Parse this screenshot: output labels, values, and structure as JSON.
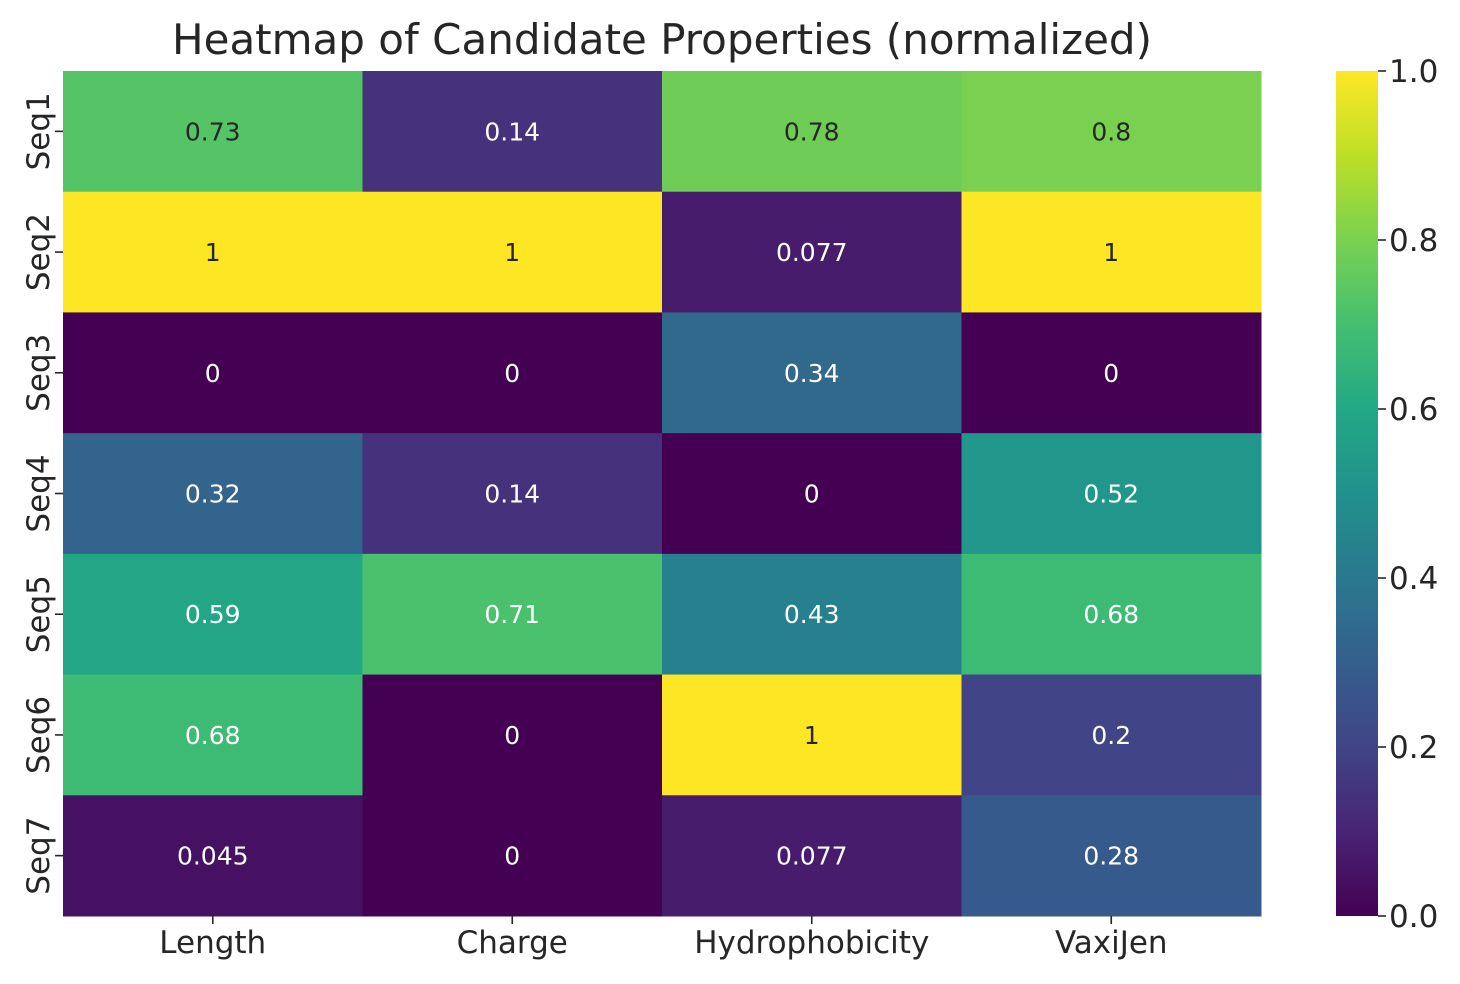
{
  "chart_data": {
    "type": "heatmap",
    "title": "Heatmap of Candidate Properties (normalized)",
    "xlabel": "",
    "ylabel": "",
    "columns": [
      "Length",
      "Charge",
      "Hydrophobicity",
      "VaxiJen"
    ],
    "rows": [
      "Seq1",
      "Seq2",
      "Seq3",
      "Seq4",
      "Seq5",
      "Seq6",
      "Seq7"
    ],
    "values": [
      [
        0.73,
        0.14,
        0.78,
        0.8
      ],
      [
        1,
        1,
        0.077,
        1
      ],
      [
        0,
        0,
        0.34,
        0
      ],
      [
        0.32,
        0.14,
        0,
        0.52
      ],
      [
        0.59,
        0.71,
        0.43,
        0.68
      ],
      [
        0.68,
        0,
        1,
        0.2
      ],
      [
        0.045,
        0,
        0.077,
        0.28
      ]
    ],
    "cell_labels": [
      [
        "0.73",
        "0.14",
        "0.78",
        "0.8"
      ],
      [
        "1",
        "1",
        "0.077",
        "1"
      ],
      [
        "0",
        "0",
        "0.34",
        "0"
      ],
      [
        "0.32",
        "0.14",
        "0",
        "0.52"
      ],
      [
        "0.59",
        "0.71",
        "0.43",
        "0.68"
      ],
      [
        "0.68",
        "0",
        "1",
        "0.2"
      ],
      [
        "0.045",
        "0",
        "0.077",
        "0.28"
      ]
    ],
    "colormap": "viridis",
    "vmin": 0,
    "vmax": 1,
    "colorbar": {
      "ticks": [
        0,
        0.2,
        0.4,
        0.6,
        0.8,
        1.0
      ],
      "tick_labels": [
        "0.0",
        "0.2",
        "0.4",
        "0.6",
        "0.8",
        "1.0"
      ],
      "position": "right"
    },
    "grid": false,
    "legend": "none"
  }
}
